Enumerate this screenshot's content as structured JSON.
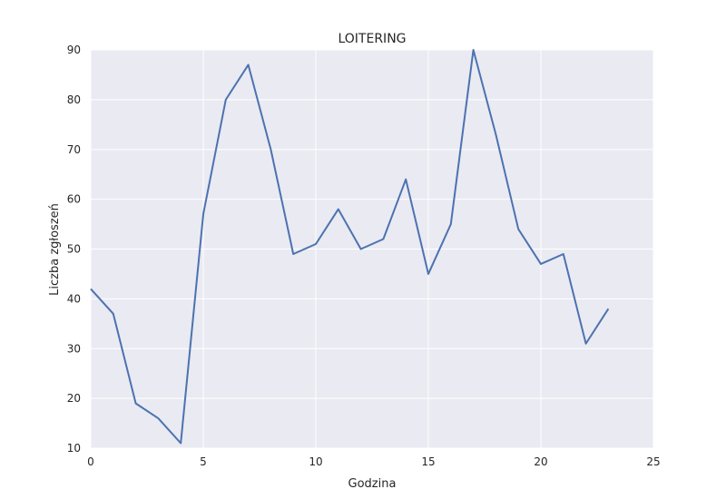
{
  "chart_data": {
    "type": "line",
    "title": "LOITERING",
    "xlabel": "Godzina",
    "ylabel": "Liczba zgłoszeń",
    "xlim": [
      0,
      25
    ],
    "ylim": [
      10,
      90
    ],
    "xticks": [
      0,
      5,
      10,
      15,
      20,
      25
    ],
    "yticks": [
      10,
      20,
      30,
      40,
      50,
      60,
      70,
      80,
      90
    ],
    "grid": true,
    "colors": {
      "background": "#eaeaf2",
      "grid": "#ffffff",
      "line": "#4c72b0"
    },
    "series": [
      {
        "x": [
          0,
          1,
          2,
          3,
          4,
          5,
          6,
          7,
          8,
          9,
          10,
          11,
          12,
          13,
          14,
          15,
          16,
          17,
          18,
          19,
          20,
          21,
          22,
          23
        ],
        "values": [
          42,
          37,
          19,
          16,
          11,
          57,
          80,
          87,
          70,
          49,
          51,
          58,
          50,
          52,
          64,
          45,
          55,
          90,
          73,
          54,
          47,
          49,
          31,
          38
        ]
      }
    ]
  }
}
